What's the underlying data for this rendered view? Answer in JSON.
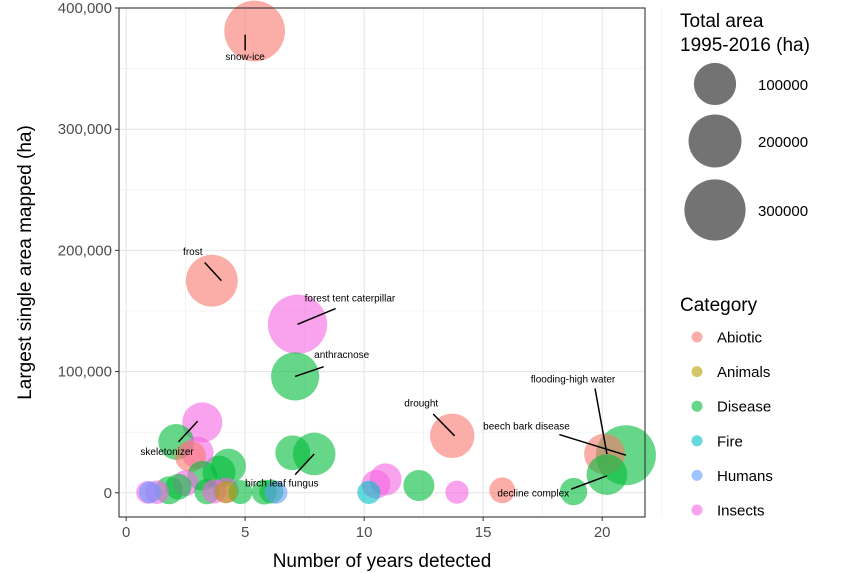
{
  "chart_data": {
    "type": "scatter",
    "xlabel": "Number of years detected",
    "ylabel": "Largest single area mapped (ha)",
    "xlim": [
      -0.3,
      21.8
    ],
    "ylim": [
      -20000,
      400000
    ],
    "x_ticks": [
      0,
      5,
      10,
      15,
      20
    ],
    "y_ticks": [
      0,
      100000,
      200000,
      300000,
      400000
    ],
    "y_tick_labels": [
      "0",
      "100,000",
      "200,000",
      "300,000",
      "400,000"
    ],
    "grid": true,
    "size_legend": {
      "title_lines": [
        "Total area",
        "1995-2016 (ha)"
      ],
      "values": [
        100000,
        200000,
        300000
      ],
      "labels": [
        "100000",
        "200000",
        "300000"
      ]
    },
    "color_legend": {
      "title": "Category",
      "placement": "right",
      "entries": [
        {
          "name": "Abiotic",
          "color": "#F8766D"
        },
        {
          "name": "Animals",
          "color": "#B79F00"
        },
        {
          "name": "Disease",
          "color": "#00BA38"
        },
        {
          "name": "Fire",
          "color": "#00BFC4"
        },
        {
          "name": "Humans",
          "color": "#619CFF"
        },
        {
          "name": "Insects",
          "color": "#F564E3"
        }
      ]
    },
    "points": [
      {
        "x": 5.4,
        "y": 381000,
        "size": 310000,
        "category": "Abiotic"
      },
      {
        "x": 3.6,
        "y": 175000,
        "size": 200000,
        "category": "Abiotic"
      },
      {
        "x": 13.7,
        "y": 47000,
        "size": 125000,
        "category": "Abiotic"
      },
      {
        "x": 20.1,
        "y": 32000,
        "size": 95000,
        "category": "Abiotic"
      },
      {
        "x": 2.7,
        "y": 30000,
        "size": 35000,
        "category": "Abiotic"
      },
      {
        "x": 15.8,
        "y": 2000,
        "size": 15000,
        "category": "Abiotic"
      },
      {
        "x": 7.2,
        "y": 139000,
        "size": 290000,
        "category": "Insects"
      },
      {
        "x": 3.2,
        "y": 58000,
        "size": 90000,
        "category": "Insects"
      },
      {
        "x": 3.0,
        "y": 33000,
        "size": 40000,
        "category": "Insects"
      },
      {
        "x": 10.9,
        "y": 11000,
        "size": 40000,
        "category": "Insects"
      },
      {
        "x": 10.5,
        "y": 7000,
        "size": 25000,
        "category": "Insects"
      },
      {
        "x": 13.9,
        "y": 500,
        "size": 8000,
        "category": "Insects"
      },
      {
        "x": 3.7,
        "y": 1000,
        "size": 10000,
        "category": "Insects"
      },
      {
        "x": 4.2,
        "y": 2000,
        "size": 14000,
        "category": "Insects"
      },
      {
        "x": 1.3,
        "y": 500,
        "size": 9000,
        "category": "Insects"
      },
      {
        "x": 0.9,
        "y": 300,
        "size": 7000,
        "category": "Insects"
      },
      {
        "x": 2.5,
        "y": 8000,
        "size": 15000,
        "category": "Insects"
      },
      {
        "x": 7.1,
        "y": 96000,
        "size": 160000,
        "category": "Disease"
      },
      {
        "x": 21.0,
        "y": 31000,
        "size": 300000,
        "category": "Disease"
      },
      {
        "x": 20.2,
        "y": 15000,
        "size": 95000,
        "category": "Disease"
      },
      {
        "x": 7.0,
        "y": 33000,
        "size": 55000,
        "category": "Disease"
      },
      {
        "x": 7.9,
        "y": 32000,
        "size": 110000,
        "category": "Disease"
      },
      {
        "x": 2.1,
        "y": 42000,
        "size": 60000,
        "category": "Disease"
      },
      {
        "x": 4.3,
        "y": 22000,
        "size": 55000,
        "category": "Disease"
      },
      {
        "x": 3.9,
        "y": 17000,
        "size": 45000,
        "category": "Disease"
      },
      {
        "x": 3.2,
        "y": 14000,
        "size": 30000,
        "category": "Disease"
      },
      {
        "x": 12.3,
        "y": 6000,
        "size": 35000,
        "category": "Disease"
      },
      {
        "x": 18.8,
        "y": 1000,
        "size": 20000,
        "category": "Disease"
      },
      {
        "x": 1.8,
        "y": 2000,
        "size": 22000,
        "category": "Disease"
      },
      {
        "x": 2.2,
        "y": 5000,
        "size": 15000,
        "category": "Disease"
      },
      {
        "x": 5.8,
        "y": 500,
        "size": 12000,
        "category": "Disease"
      },
      {
        "x": 4.8,
        "y": 500,
        "size": 10000,
        "category": "Disease"
      },
      {
        "x": 3.4,
        "y": 1000,
        "size": 14000,
        "category": "Disease"
      },
      {
        "x": 6.1,
        "y": 1000,
        "size": 10000,
        "category": "Disease"
      },
      {
        "x": 6.3,
        "y": 300,
        "size": 7000,
        "category": "Humans"
      },
      {
        "x": 1.0,
        "y": 300,
        "size": 6000,
        "category": "Humans"
      },
      {
        "x": 10.2,
        "y": 300,
        "size": 8000,
        "category": "Fire"
      },
      {
        "x": 4.2,
        "y": 500,
        "size": 6000,
        "category": "Animals"
      }
    ],
    "annotations": [
      {
        "text": "snow-ice",
        "x": 5.0,
        "y": 357000,
        "anchor": "middle",
        "line": [
          [
            5.0,
            378000
          ],
          [
            5.0,
            365000
          ]
        ]
      },
      {
        "text": "frost",
        "x": 2.8,
        "y": 196000,
        "anchor": "middle",
        "line": [
          [
            3.3,
            190000
          ],
          [
            4.0,
            175000
          ]
        ]
      },
      {
        "text": "forest tent caterpillar",
        "x": 7.5,
        "y": 158000,
        "anchor": "start",
        "line": [
          [
            7.2,
            139000
          ],
          [
            8.8,
            152000
          ]
        ]
      },
      {
        "text": "anthracnose",
        "x": 7.9,
        "y": 111000,
        "anchor": "start",
        "line": [
          [
            7.1,
            96000
          ],
          [
            8.3,
            104000
          ]
        ]
      },
      {
        "text": "drought",
        "x": 12.4,
        "y": 71000,
        "anchor": "middle",
        "line": [
          [
            12.9,
            65000
          ],
          [
            13.8,
            47000
          ]
        ]
      },
      {
        "text": "beech bark disease",
        "x": 15.0,
        "y": 52000,
        "anchor": "start",
        "line": [
          [
            18.2,
            48000
          ],
          [
            21.0,
            31000
          ]
        ]
      },
      {
        "text": "flooding-high water",
        "x": 17.0,
        "y": 91000,
        "anchor": "start",
        "line": [
          [
            19.7,
            86000
          ],
          [
            20.2,
            32000
          ]
        ]
      },
      {
        "text": "skeletonizer",
        "x": 0.6,
        "y": 31000,
        "anchor": "start",
        "line": [
          [
            2.2,
            42000
          ],
          [
            3.0,
            59000
          ]
        ]
      },
      {
        "text": "birch leaf fungus",
        "x": 5.0,
        "y": 5000,
        "anchor": "start",
        "line": [
          [
            7.1,
            15000
          ],
          [
            7.9,
            32000
          ]
        ]
      },
      {
        "text": "decline complex",
        "x": 15.6,
        "y": -3000,
        "anchor": "start",
        "line": [
          [
            18.7,
            3000
          ],
          [
            20.2,
            14000
          ]
        ]
      }
    ]
  }
}
